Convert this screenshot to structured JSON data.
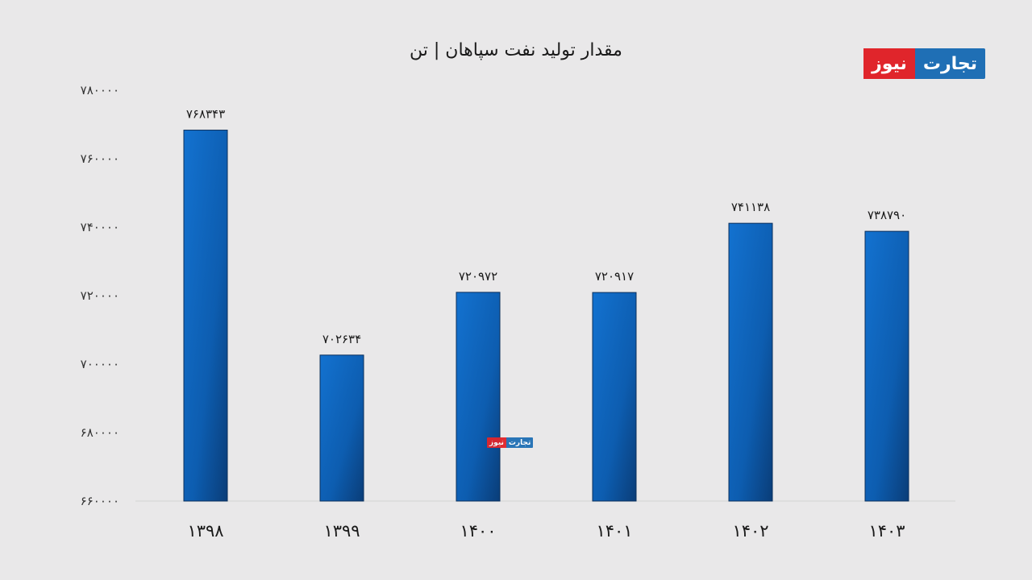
{
  "title": "مقدار تولید نفت سپاهان | تن",
  "brand": {
    "part_blue": "تجارت",
    "part_red": "نیوز",
    "color_blue": "#1f6fb5",
    "color_red": "#e0252b"
  },
  "chart_data": {
    "type": "bar",
    "title": "مقدار تولید نفت سپاهان | تن",
    "xlabel": "",
    "ylabel": "",
    "categories": [
      "1398",
      "1399",
      "1400",
      "1401",
      "1402",
      "1403"
    ],
    "category_labels": [
      "۱۳۹۸",
      "۱۳۹۹",
      "۱۴۰۰",
      "۱۴۰۱",
      "۱۴۰۲",
      "۱۴۰۳"
    ],
    "values": [
      768343,
      702634,
      720972,
      720917,
      741138,
      738790
    ],
    "data_labels": [
      "۷۶۸۳۴۳",
      "۷۰۲۶۳۴",
      "۷۲۰۹۷۲",
      "۷۲۰۹۱۷",
      "۷۴۱۱۳۸",
      "۷۳۸۷۹۰"
    ],
    "ylim": [
      660000,
      780000
    ],
    "yticks": [
      660000,
      680000,
      700000,
      720000,
      740000,
      760000,
      780000
    ],
    "ytick_labels": [
      "۶۶۰۰۰۰",
      "۶۸۰۰۰۰",
      "۷۰۰۰۰۰",
      "۷۲۰۰۰۰",
      "۷۴۰۰۰۰",
      "۷۶۰۰۰۰",
      "۷۸۰۰۰۰"
    ],
    "grid": false,
    "legend": "none",
    "bar_color": "#0f63b8",
    "bar_color_dark": "#0a3d78"
  }
}
